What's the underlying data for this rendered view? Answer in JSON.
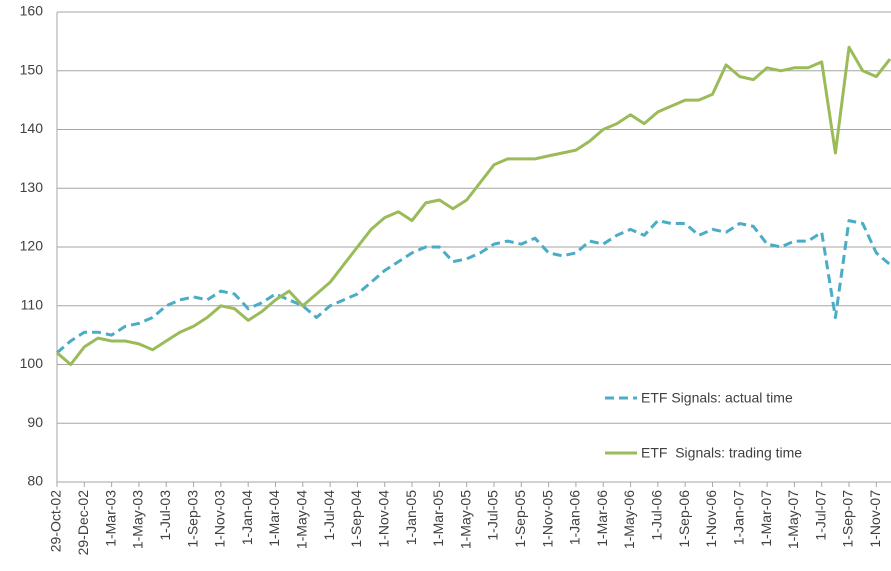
{
  "chart_data": {
    "type": "line",
    "categories": [
      "29-Oct-02",
      null,
      "29-Dec-02",
      null,
      "1-Mar-03",
      null,
      "1-May-03",
      null,
      "1-Jul-03",
      null,
      "1-Sep-03",
      null,
      "1-Nov-03",
      null,
      "1-Jan-04",
      null,
      "1-Mar-04",
      null,
      "1-May-04",
      null,
      "1-Jul-04",
      null,
      "1-Sep-04",
      null,
      "1-Nov-04",
      null,
      "1-Jan-05",
      null,
      "1-Mar-05",
      null,
      "1-May-05",
      null,
      "1-Jul-05",
      null,
      "1-Sep-05",
      null,
      "1-Nov-05",
      null,
      "1-Jan-06",
      null,
      "1-Mar-06",
      null,
      "1-May-06",
      null,
      "1-Jul-06",
      null,
      "1-Sep-06",
      null,
      "1-Nov-06",
      null,
      "1-Jan-07",
      null,
      "1-Mar-07",
      null,
      "1-May-07",
      null,
      "1-Jul-07",
      null,
      "1-Sep-07",
      null,
      "1-Nov-07",
      null
    ],
    "series": [
      {
        "name": "ETF Signals: actual time",
        "color": "#4bacc6",
        "dash": true,
        "values": [
          102,
          104,
          105.5,
          105.5,
          105,
          106.5,
          107,
          108,
          110,
          111,
          111.5,
          111,
          112.5,
          112,
          109.5,
          110.5,
          112,
          111,
          110,
          108,
          110,
          111,
          112,
          114,
          116,
          117.5,
          119,
          120,
          120,
          117.5,
          118,
          119,
          120.5,
          121,
          120.5,
          121.5,
          119,
          118.5,
          119,
          121,
          120.5,
          122,
          123,
          122,
          124.5,
          124,
          124,
          122,
          123,
          122.5,
          124,
          123.5,
          120.5,
          120,
          121,
          121,
          122.5,
          108,
          124.5,
          124,
          119,
          117
        ]
      },
      {
        "name": "ETF  Signals: trading time",
        "color": "#9bbb59",
        "dash": false,
        "values": [
          102,
          100,
          103,
          104.5,
          104,
          104,
          103.5,
          102.5,
          104,
          105.5,
          106.5,
          108,
          110,
          109.5,
          107.5,
          109,
          111,
          112.5,
          110,
          112,
          114,
          117,
          120,
          123,
          125,
          126,
          124.5,
          127.5,
          128,
          126.5,
          128,
          131,
          134,
          135,
          135,
          135,
          135.5,
          136,
          136.5,
          138,
          140,
          141,
          142.5,
          141,
          143,
          144,
          145,
          145,
          146,
          151,
          149,
          148.5,
          150.5,
          150,
          150.5,
          150.5,
          151.5,
          136,
          154,
          150,
          149,
          152
        ]
      }
    ],
    "ylim": [
      80,
      160
    ],
    "yticks": [
      80,
      90,
      100,
      110,
      120,
      130,
      140,
      150,
      160
    ],
    "grid": true,
    "legend": "lower-right"
  }
}
